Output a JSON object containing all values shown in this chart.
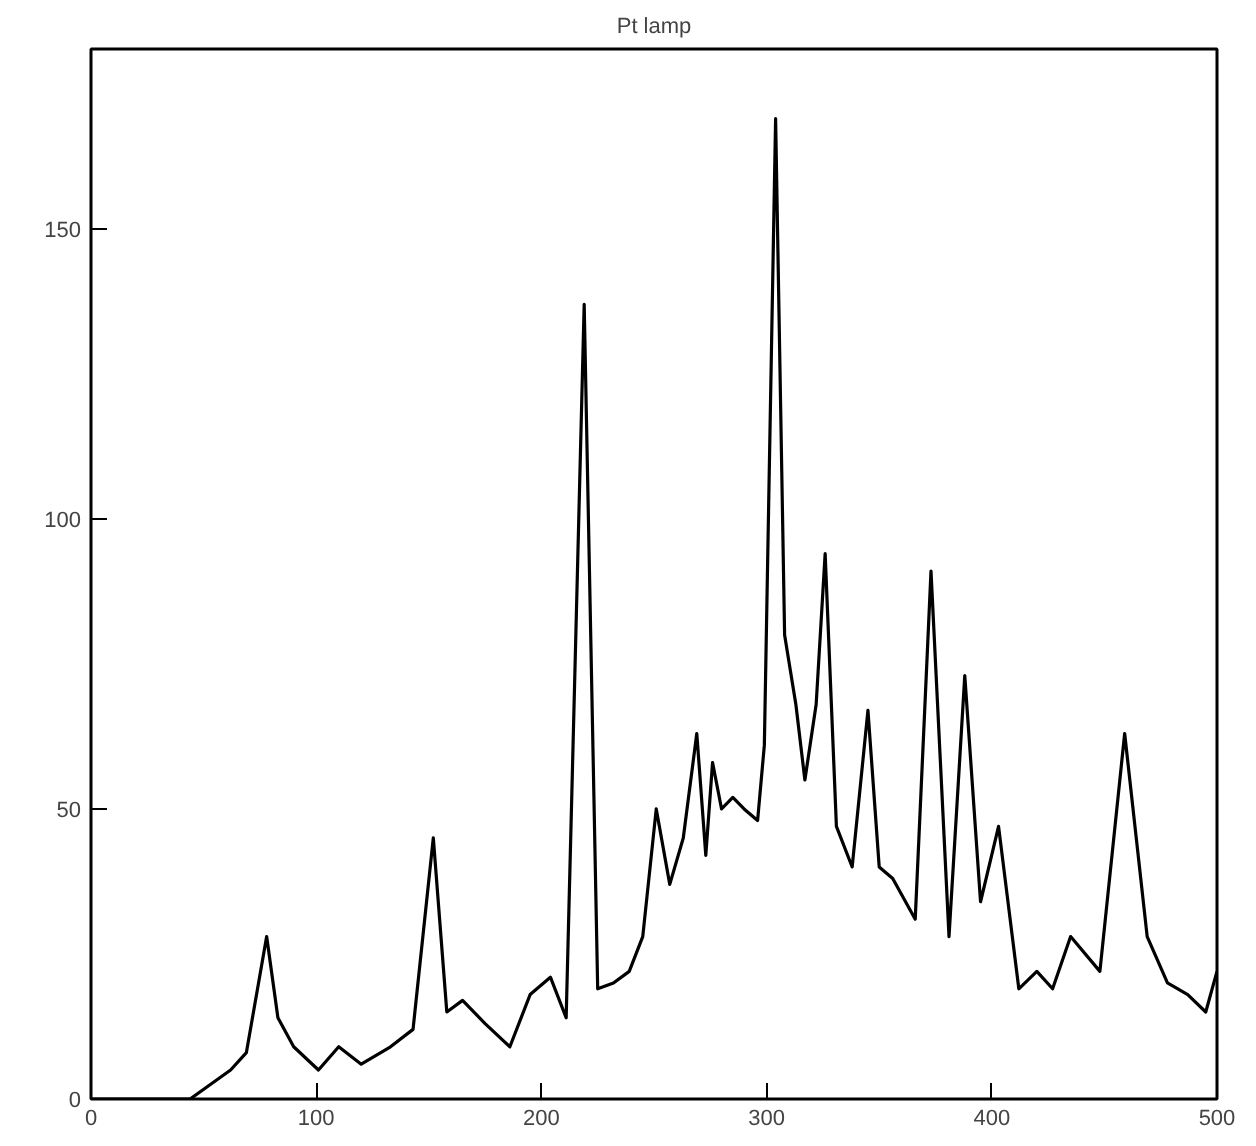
{
  "chart_data": {
    "type": "line",
    "title": "Pt lamp",
    "xlim": [
      0,
      500
    ],
    "ylim": [
      0,
      181
    ],
    "xticks": [
      0,
      100,
      200,
      300,
      400,
      500
    ],
    "yticks": [
      0,
      50,
      100,
      150
    ],
    "line_style": "solid",
    "x": [
      0,
      44,
      62,
      69,
      78,
      83,
      90,
      101,
      110,
      120,
      133,
      143,
      152,
      158,
      165,
      175,
      186,
      195,
      204,
      211,
      219,
      225,
      232,
      239,
      245,
      251,
      257,
      263,
      269,
      273,
      276,
      280,
      285,
      290,
      296,
      299,
      304,
      308,
      313,
      317,
      322,
      326,
      331,
      338,
      345,
      350,
      356,
      366,
      373,
      381,
      388,
      395,
      403,
      412,
      420,
      427,
      435,
      448,
      459,
      469,
      478,
      487,
      495,
      500
    ],
    "series": [
      {
        "color": "#000000",
        "values": [
          0,
          0,
          5,
          8,
          28,
          14,
          9,
          5,
          9,
          6,
          9,
          12,
          45,
          15,
          17,
          13,
          9,
          18,
          21,
          14,
          137,
          19,
          20,
          22,
          28,
          50,
          37,
          45,
          63,
          42,
          58,
          50,
          52,
          50,
          48,
          61,
          169,
          80,
          68,
          55,
          68,
          94,
          47,
          40,
          67,
          40,
          38,
          31,
          91,
          28,
          73,
          34,
          47,
          19,
          22,
          19,
          28,
          22,
          63,
          28,
          20,
          18,
          15,
          22
        ]
      }
    ]
  }
}
